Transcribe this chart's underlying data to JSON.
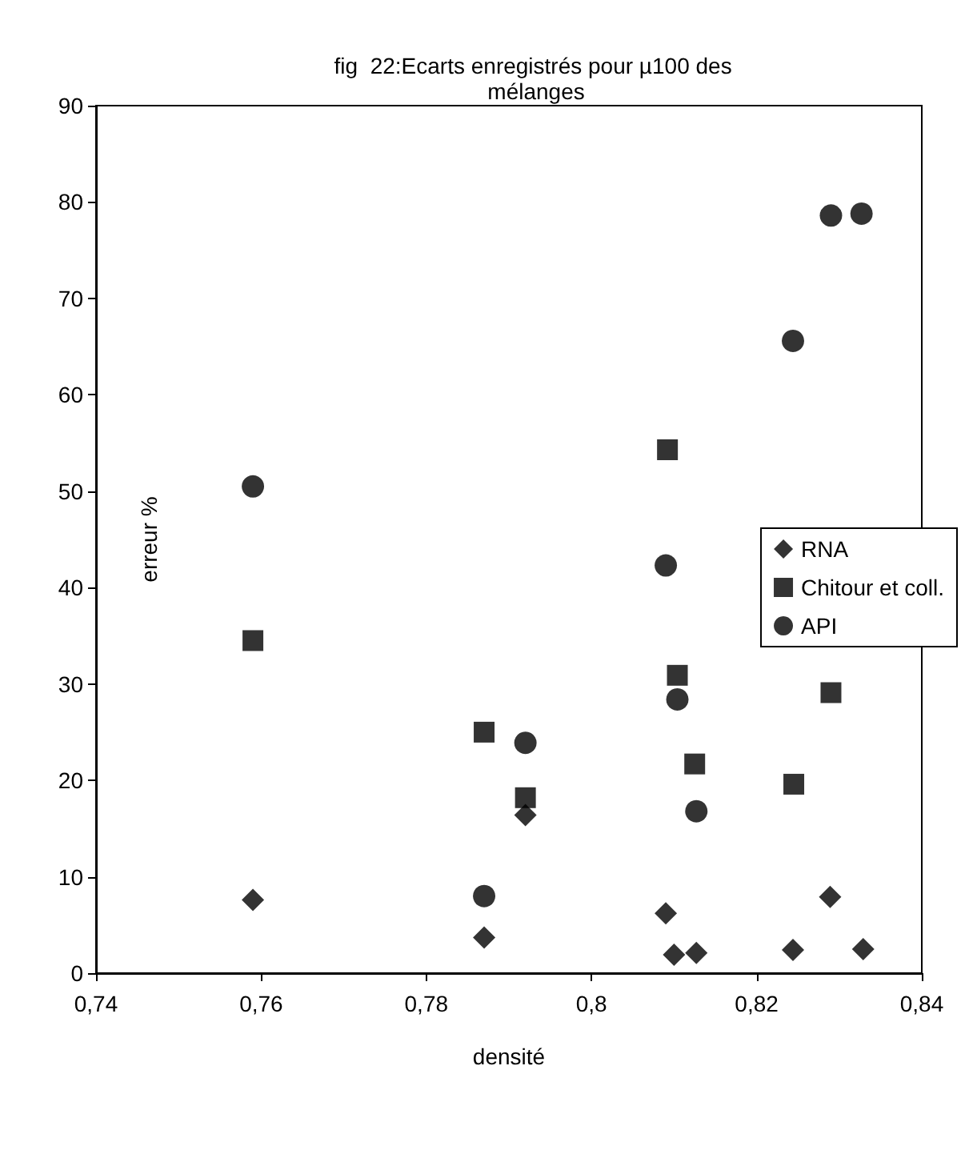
{
  "chart_data": {
    "type": "scatter",
    "title": "fig  22:Ecarts enregistrés pour µ100 des mélanges",
    "xlabel": "densité",
    "ylabel": "erreur %",
    "xlim": [
      0.74,
      0.84
    ],
    "xticks": [
      {
        "value": 0.74,
        "label": "0,74"
      },
      {
        "value": 0.76,
        "label": "0,76"
      },
      {
        "value": 0.78,
        "label": "0,78"
      },
      {
        "value": 0.8,
        "label": "0,8"
      },
      {
        "value": 0.82,
        "label": "0,82"
      },
      {
        "value": 0.84,
        "label": "0,84"
      }
    ],
    "ylim": [
      0,
      90
    ],
    "yticks": [
      0,
      10,
      20,
      30,
      40,
      50,
      60,
      70,
      80,
      90
    ],
    "grid": false,
    "legend": "right",
    "series": [
      {
        "name": "RNA",
        "color": "#000000",
        "marker": "diamond",
        "x": [
          0.759,
          0.787,
          0.792,
          0.809,
          0.81,
          0.8127,
          0.8244,
          0.8289,
          0.8329
        ],
        "values": [
          7.6,
          3.7,
          16.4,
          6.2,
          1.9,
          2.1,
          2.4,
          7.9,
          2.5
        ]
      },
      {
        "name": "Chitour et coll.",
        "color": "#000000",
        "marker": "square",
        "x": [
          0.759,
          0.787,
          0.792,
          0.8092,
          0.8104,
          0.8125,
          0.8245,
          0.829
        ],
        "values": [
          34.5,
          25,
          18.2,
          54.3,
          30.9,
          21.7,
          19.6,
          29.1
        ]
      },
      {
        "name": "API",
        "color": "#000000",
        "marker": "circle",
        "x": [
          0.759,
          0.787,
          0.792,
          0.809,
          0.8104,
          0.8127,
          0.8244,
          0.829,
          0.8327
        ],
        "values": [
          50.5,
          8.0,
          23.9,
          42.3,
          28.4,
          16.8,
          65.6,
          78.6,
          78.8
        ]
      }
    ]
  }
}
